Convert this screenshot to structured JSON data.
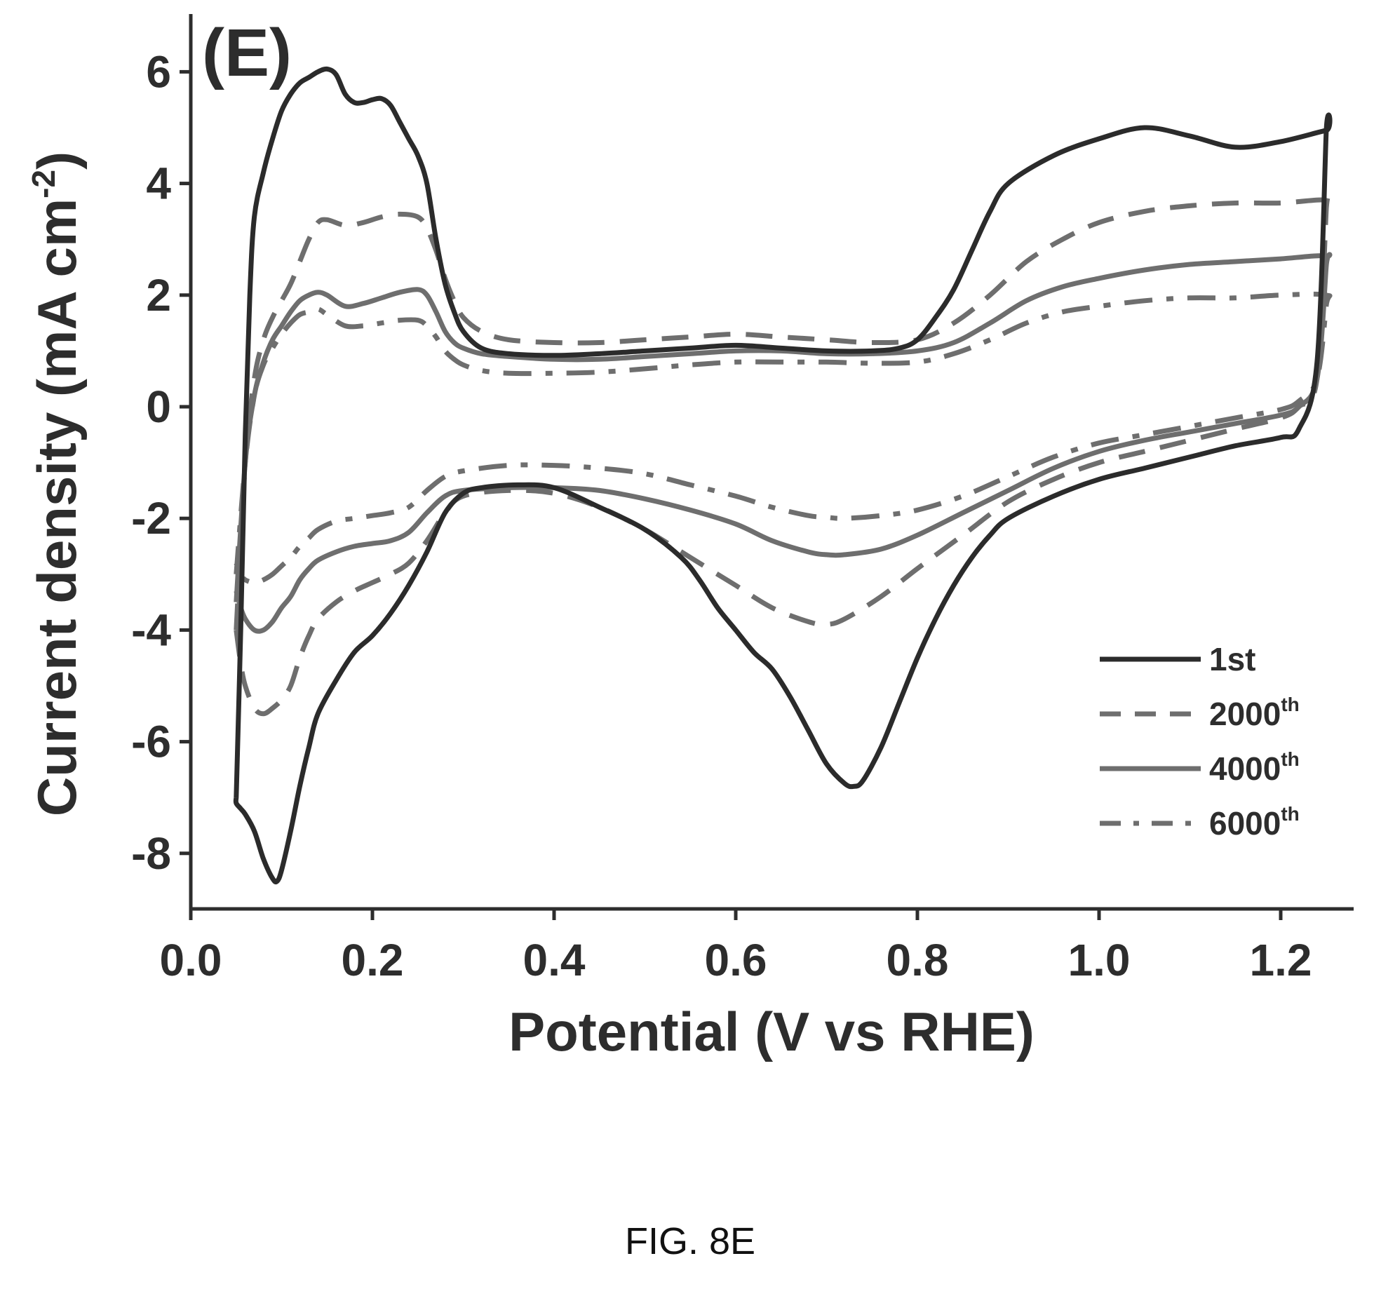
{
  "figure_caption": "FIG. 8E",
  "chart_data": {
    "type": "line",
    "panel_label": "(E)",
    "xlabel": "Potential (V vs RHE)",
    "ylabel": "Current density (mA cm",
    "ylabel_sup": "-2",
    "ylabel_close": ")",
    "xlim": [
      0.0,
      1.3
    ],
    "ylim": [
      -9,
      7
    ],
    "xticks": [
      "0.0",
      "0.2",
      "0.4",
      "0.6",
      "0.8",
      "1.0",
      "1.2"
    ],
    "yticks": [
      "6",
      "4",
      "2",
      "0",
      "-2",
      "-4",
      "-6",
      "-8"
    ],
    "grid": false,
    "legend_position": "bottom-right",
    "series": [
      {
        "name": "1st",
        "name_sup": "",
        "color": "#2b2b2b",
        "dash": "solid",
        "x": [
          0.05,
          0.055,
          0.06,
          0.065,
          0.07,
          0.08,
          0.09,
          0.1,
          0.11,
          0.12,
          0.13,
          0.14,
          0.15,
          0.16,
          0.17,
          0.18,
          0.19,
          0.2,
          0.21,
          0.22,
          0.23,
          0.24,
          0.25,
          0.26,
          0.27,
          0.28,
          0.29,
          0.3,
          0.32,
          0.35,
          0.4,
          0.45,
          0.5,
          0.55,
          0.6,
          0.65,
          0.7,
          0.75,
          0.78,
          0.8,
          0.82,
          0.84,
          0.86,
          0.88,
          0.9,
          0.95,
          1.0,
          1.05,
          1.1,
          1.15,
          1.2,
          1.25,
          1.25,
          1.24,
          1.22,
          1.2,
          1.15,
          1.1,
          1.05,
          1.0,
          0.95,
          0.9,
          0.88,
          0.86,
          0.84,
          0.82,
          0.8,
          0.78,
          0.76,
          0.74,
          0.73,
          0.72,
          0.7,
          0.68,
          0.66,
          0.64,
          0.62,
          0.6,
          0.58,
          0.56,
          0.54,
          0.5,
          0.45,
          0.4,
          0.36,
          0.32,
          0.3,
          0.28,
          0.26,
          0.24,
          0.22,
          0.2,
          0.18,
          0.16,
          0.14,
          0.13,
          0.12,
          0.11,
          0.1,
          0.095,
          0.09,
          0.08,
          0.07,
          0.06,
          0.055,
          0.05,
          0.05
        ],
        "y": [
          -7.0,
          -4.0,
          -0.5,
          2.0,
          3.4,
          4.2,
          4.8,
          5.3,
          5.6,
          5.8,
          5.9,
          6.0,
          6.05,
          5.95,
          5.6,
          5.45,
          5.45,
          5.5,
          5.52,
          5.4,
          5.1,
          4.8,
          4.5,
          4.0,
          3.0,
          2.2,
          1.7,
          1.35,
          1.05,
          0.95,
          0.92,
          0.95,
          1.0,
          1.05,
          1.1,
          1.05,
          1.0,
          1.0,
          1.05,
          1.2,
          1.6,
          2.1,
          2.8,
          3.5,
          4.0,
          4.5,
          4.8,
          5.0,
          4.85,
          4.65,
          4.75,
          4.95,
          4.9,
          0.8,
          -0.4,
          -0.55,
          -0.7,
          -0.9,
          -1.1,
          -1.3,
          -1.6,
          -2.0,
          -2.3,
          -2.7,
          -3.2,
          -3.8,
          -4.5,
          -5.3,
          -6.1,
          -6.7,
          -6.8,
          -6.75,
          -6.4,
          -5.8,
          -5.2,
          -4.7,
          -4.4,
          -4.0,
          -3.6,
          -3.1,
          -2.7,
          -2.2,
          -1.8,
          -1.45,
          -1.4,
          -1.45,
          -1.55,
          -1.9,
          -2.6,
          -3.2,
          -3.7,
          -4.1,
          -4.4,
          -4.9,
          -5.5,
          -6.1,
          -6.8,
          -7.6,
          -8.3,
          -8.5,
          -8.45,
          -8.1,
          -7.6,
          -7.3,
          -7.2,
          -7.1,
          -7.0
        ]
      },
      {
        "name": "2000",
        "name_sup": "th",
        "color": "#6e6e6e",
        "dash": "long-dash",
        "x": [
          0.05,
          0.06,
          0.07,
          0.08,
          0.09,
          0.1,
          0.11,
          0.12,
          0.13,
          0.14,
          0.15,
          0.17,
          0.19,
          0.21,
          0.23,
          0.25,
          0.26,
          0.27,
          0.28,
          0.29,
          0.3,
          0.32,
          0.35,
          0.4,
          0.45,
          0.5,
          0.55,
          0.6,
          0.65,
          0.7,
          0.75,
          0.8,
          0.84,
          0.88,
          0.92,
          0.96,
          1.0,
          1.05,
          1.1,
          1.15,
          1.2,
          1.25,
          1.25,
          1.24,
          1.22,
          1.2,
          1.15,
          1.1,
          1.05,
          1.0,
          0.95,
          0.9,
          0.85,
          0.8,
          0.76,
          0.72,
          0.7,
          0.68,
          0.64,
          0.6,
          0.55,
          0.5,
          0.45,
          0.4,
          0.35,
          0.3,
          0.28,
          0.26,
          0.24,
          0.22,
          0.2,
          0.18,
          0.16,
          0.14,
          0.13,
          0.12,
          0.11,
          0.1,
          0.09,
          0.08,
          0.07,
          0.06,
          0.055,
          0.05
        ],
        "y": [
          -4.0,
          -1.0,
          0.5,
          1.2,
          1.6,
          1.9,
          2.2,
          2.6,
          3.0,
          3.3,
          3.35,
          3.25,
          3.3,
          3.4,
          3.45,
          3.4,
          3.2,
          2.8,
          2.3,
          1.9,
          1.6,
          1.35,
          1.2,
          1.15,
          1.15,
          1.2,
          1.25,
          1.3,
          1.25,
          1.2,
          1.15,
          1.2,
          1.5,
          2.0,
          2.6,
          3.0,
          3.3,
          3.5,
          3.6,
          3.65,
          3.65,
          3.7,
          3.5,
          0.5,
          0.0,
          -0.2,
          -0.4,
          -0.6,
          -0.8,
          -1.0,
          -1.3,
          -1.7,
          -2.3,
          -2.9,
          -3.4,
          -3.8,
          -3.9,
          -3.85,
          -3.6,
          -3.2,
          -2.7,
          -2.2,
          -1.8,
          -1.55,
          -1.5,
          -1.6,
          -1.9,
          -2.4,
          -2.8,
          -3.0,
          -3.15,
          -3.3,
          -3.5,
          -3.8,
          -4.1,
          -4.5,
          -5.0,
          -5.25,
          -5.4,
          -5.5,
          -5.4,
          -5.0,
          -4.6,
          -4.0
        ]
      },
      {
        "name": "4000",
        "name_sup": "th",
        "color": "#6e6e6e",
        "dash": "solid",
        "x": [
          0.05,
          0.06,
          0.07,
          0.08,
          0.09,
          0.1,
          0.11,
          0.12,
          0.13,
          0.14,
          0.15,
          0.17,
          0.19,
          0.21,
          0.23,
          0.25,
          0.26,
          0.27,
          0.28,
          0.29,
          0.3,
          0.32,
          0.35,
          0.4,
          0.45,
          0.5,
          0.55,
          0.6,
          0.65,
          0.7,
          0.75,
          0.8,
          0.84,
          0.88,
          0.92,
          0.96,
          1.0,
          1.05,
          1.1,
          1.15,
          1.2,
          1.25,
          1.25,
          1.24,
          1.22,
          1.2,
          1.15,
          1.1,
          1.05,
          1.0,
          0.95,
          0.9,
          0.85,
          0.8,
          0.76,
          0.72,
          0.7,
          0.68,
          0.64,
          0.6,
          0.55,
          0.5,
          0.45,
          0.4,
          0.35,
          0.3,
          0.28,
          0.26,
          0.24,
          0.22,
          0.2,
          0.18,
          0.16,
          0.14,
          0.13,
          0.12,
          0.11,
          0.1,
          0.09,
          0.08,
          0.07,
          0.06,
          0.055,
          0.05
        ],
        "y": [
          -3.5,
          -1.0,
          0.2,
          0.8,
          1.2,
          1.45,
          1.7,
          1.9,
          2.0,
          2.05,
          2.0,
          1.8,
          1.85,
          1.95,
          2.05,
          2.1,
          2.0,
          1.7,
          1.35,
          1.15,
          1.05,
          0.95,
          0.9,
          0.85,
          0.85,
          0.9,
          0.95,
          1.0,
          1.0,
          0.95,
          0.95,
          1.0,
          1.15,
          1.5,
          1.9,
          2.15,
          2.3,
          2.45,
          2.55,
          2.6,
          2.65,
          2.7,
          2.5,
          0.5,
          0.0,
          -0.15,
          -0.3,
          -0.45,
          -0.6,
          -0.8,
          -1.1,
          -1.5,
          -1.9,
          -2.3,
          -2.55,
          -2.65,
          -2.65,
          -2.6,
          -2.4,
          -2.1,
          -1.85,
          -1.65,
          -1.5,
          -1.45,
          -1.45,
          -1.5,
          -1.6,
          -1.9,
          -2.25,
          -2.4,
          -2.45,
          -2.5,
          -2.6,
          -2.75,
          -2.9,
          -3.1,
          -3.4,
          -3.6,
          -3.85,
          -4.0,
          -4.0,
          -3.8,
          -3.6,
          -3.3
        ]
      },
      {
        "name": "6000",
        "name_sup": "th",
        "color": "#6e6e6e",
        "dash": "dash-dot",
        "x": [
          0.05,
          0.06,
          0.07,
          0.08,
          0.09,
          0.1,
          0.11,
          0.12,
          0.13,
          0.14,
          0.15,
          0.17,
          0.19,
          0.21,
          0.23,
          0.25,
          0.26,
          0.27,
          0.28,
          0.29,
          0.3,
          0.32,
          0.35,
          0.4,
          0.45,
          0.5,
          0.55,
          0.6,
          0.65,
          0.7,
          0.75,
          0.8,
          0.84,
          0.88,
          0.92,
          0.96,
          1.0,
          1.05,
          1.1,
          1.15,
          1.2,
          1.25,
          1.25,
          1.24,
          1.22,
          1.2,
          1.15,
          1.1,
          1.05,
          1.0,
          0.95,
          0.9,
          0.85,
          0.8,
          0.76,
          0.72,
          0.7,
          0.68,
          0.64,
          0.6,
          0.55,
          0.5,
          0.45,
          0.4,
          0.35,
          0.3,
          0.28,
          0.26,
          0.24,
          0.22,
          0.2,
          0.18,
          0.16,
          0.14,
          0.13,
          0.12,
          0.11,
          0.1,
          0.09,
          0.08,
          0.07,
          0.06,
          0.055,
          0.05
        ],
        "y": [
          -3.0,
          -1.0,
          0.2,
          0.75,
          1.05,
          1.3,
          1.5,
          1.65,
          1.7,
          1.75,
          1.65,
          1.45,
          1.45,
          1.5,
          1.55,
          1.55,
          1.45,
          1.25,
          1.0,
          0.85,
          0.75,
          0.65,
          0.6,
          0.6,
          0.62,
          0.68,
          0.75,
          0.8,
          0.8,
          0.8,
          0.78,
          0.8,
          0.95,
          1.2,
          1.5,
          1.7,
          1.8,
          1.9,
          1.95,
          1.95,
          2.0,
          2.0,
          1.8,
          0.5,
          0.1,
          -0.05,
          -0.2,
          -0.35,
          -0.5,
          -0.65,
          -0.9,
          -1.25,
          -1.6,
          -1.85,
          -1.95,
          -2.0,
          -1.98,
          -1.95,
          -1.8,
          -1.6,
          -1.4,
          -1.2,
          -1.1,
          -1.05,
          -1.05,
          -1.15,
          -1.25,
          -1.5,
          -1.8,
          -1.9,
          -1.95,
          -2.0,
          -2.05,
          -2.2,
          -2.35,
          -2.5,
          -2.7,
          -2.85,
          -3.0,
          -3.1,
          -3.15,
          -3.1,
          -3.0,
          -2.8
        ]
      }
    ]
  }
}
